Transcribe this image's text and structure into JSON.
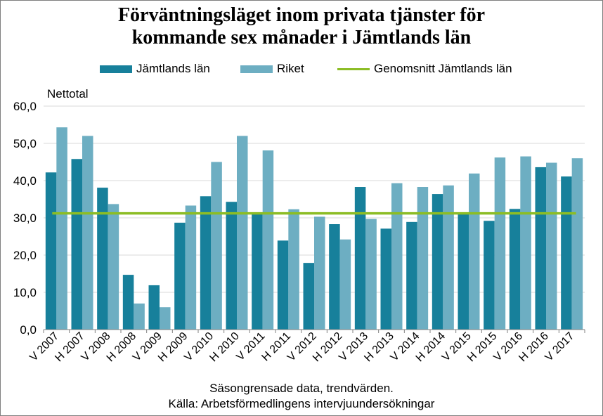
{
  "chart_data": {
    "type": "bar",
    "title_lines": [
      "Förväntningsläget inom privata tjänster för",
      "kommande sex månader i Jämtlands län"
    ],
    "ylabel": "Nettotal",
    "ylim": [
      0,
      60
    ],
    "yticks": [
      "0,0",
      "10,0",
      "20,0",
      "30,0",
      "40,0",
      "50,0",
      "60,0"
    ],
    "grid": true,
    "legend_position": "top",
    "categories": [
      "V 2007",
      "H 2007",
      "V 2008",
      "H 2008",
      "V 2009",
      "H 2009",
      "V 2010",
      "H 2010",
      "V 2011",
      "H 2011",
      "V 2012",
      "H 2012",
      "V 2013",
      "H 2013",
      "V 2014",
      "H 2014",
      "V 2015",
      "H 2015",
      "V 2016",
      "H 2016",
      "V 2017"
    ],
    "series": [
      {
        "name": "Jämtlands län",
        "color": "#17809b",
        "type": "bar",
        "values": [
          42.2,
          45.8,
          38.1,
          14.7,
          11.9,
          28.7,
          35.8,
          34.3,
          31.0,
          23.9,
          17.9,
          28.3,
          38.3,
          27.1,
          28.9,
          36.4,
          31.0,
          29.2,
          32.4,
          43.6,
          41.1
        ]
      },
      {
        "name": "Riket",
        "color": "#6daec2",
        "type": "bar",
        "values": [
          54.3,
          52.0,
          33.7,
          7.0,
          6.0,
          33.3,
          45.0,
          52.0,
          48.1,
          32.3,
          30.3,
          24.2,
          29.7,
          39.3,
          38.3,
          38.7,
          41.9,
          46.2,
          46.5,
          44.8,
          46.0
        ]
      },
      {
        "name": "Genomsnitt Jämtlands län",
        "color": "#8cbd25",
        "type": "line",
        "value": 31.2
      }
    ],
    "notes": [
      "Säsongrensade data, trendvärden.",
      "Källa: Arbetsförmedlingens  intervjuundersökningar"
    ],
    "gridline_color": "#d9d9d9",
    "axis_color": "#808080"
  }
}
